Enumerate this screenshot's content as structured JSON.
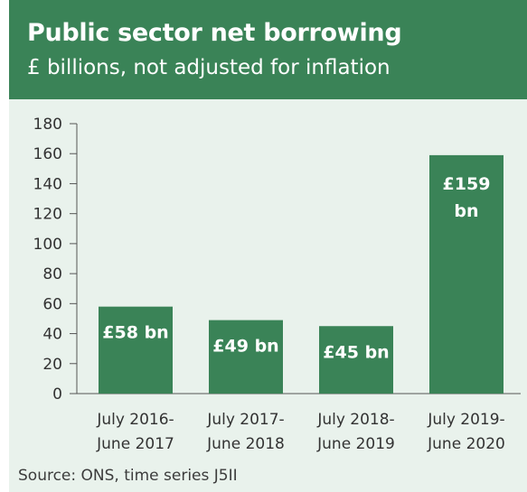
{
  "header": {
    "title": "Public sector net borrowing",
    "subtitle": "£ billions, not adjusted for inflation"
  },
  "source": "Source: ONS, time series J5II",
  "colors": {
    "header_bg": "#3a8357",
    "bar": "#3a8357",
    "plot_bg": "#e9f2ec",
    "bar_label": "#ffffff"
  },
  "chart_data": {
    "type": "bar",
    "title": "Public sector net borrowing",
    "subtitle": "£ billions, not adjusted for inflation",
    "categories": [
      [
        "July 2016-",
        "June 2017"
      ],
      [
        "July 2017-",
        "June 2018"
      ],
      [
        "July 2018-",
        "June 2019"
      ],
      [
        "July 2019-",
        "June 2020"
      ]
    ],
    "values": [
      58,
      49,
      45,
      159
    ],
    "data_labels": [
      [
        "£58 bn"
      ],
      [
        "£49 bn"
      ],
      [
        "£45 bn"
      ],
      [
        "£159",
        "bn"
      ]
    ],
    "ylim": [
      0,
      180
    ],
    "yticks": [
      0,
      20,
      40,
      60,
      80,
      100,
      120,
      140,
      160,
      180
    ],
    "grid": false,
    "legend": "none"
  }
}
